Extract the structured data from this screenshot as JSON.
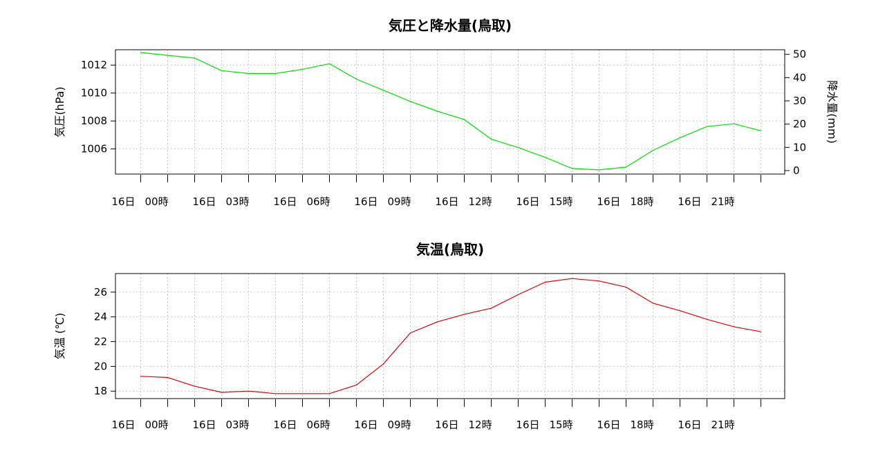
{
  "chart_data": [
    {
      "type": "line",
      "title": "気圧と降水量(鳥取)",
      "ylabel": "気圧(hPa)",
      "ylabel_right": "降水量(mm)",
      "x_tick_labels": [
        "16日 00時",
        "16日 03時",
        "16日 06時",
        "16日 09時",
        "16日 12時",
        "16日 15時",
        "16日 18時",
        "16日 21時"
      ],
      "x_hours": [
        0,
        1,
        2,
        3,
        4,
        5,
        6,
        7,
        8,
        9,
        10,
        11,
        12,
        13,
        14,
        15,
        16,
        17,
        18,
        19,
        20,
        21,
        22,
        23
      ],
      "ylim": [
        1004.2,
        1013.1
      ],
      "y_ticks": [
        1006,
        1008,
        1010,
        1012
      ],
      "y2lim": [
        -1.5,
        52
      ],
      "y2_ticks": [
        0,
        10,
        20,
        30,
        40,
        50
      ],
      "grid": true,
      "series": [
        {
          "color": "#00dd00",
          "axis": "left",
          "values": [
            1012.9,
            1012.7,
            1012.5,
            1011.6,
            1011.4,
            1011.4,
            1011.7,
            1012.1,
            1011.0,
            1010.2,
            1009.4,
            1008.7,
            1008.1,
            1006.7,
            1006.1,
            1005.4,
            1004.6,
            1004.5,
            1004.7,
            1005.9,
            1006.8,
            1007.6,
            1007.8,
            1007.3
          ]
        }
      ]
    },
    {
      "type": "line",
      "title": "気温(鳥取)",
      "ylabel": "気温 (℃)",
      "x_tick_labels": [
        "16日 00時",
        "16日 03時",
        "16日 06時",
        "16日 09時",
        "16日 12時",
        "16日 15時",
        "16日 18時",
        "16日 21時"
      ],
      "x_hours": [
        0,
        1,
        2,
        3,
        4,
        5,
        6,
        7,
        8,
        9,
        10,
        11,
        12,
        13,
        14,
        15,
        16,
        17,
        18,
        19,
        20,
        21,
        22,
        23
      ],
      "ylim": [
        17.4,
        27.5
      ],
      "y_ticks": [
        18,
        20,
        22,
        24,
        26
      ],
      "grid": true,
      "series": [
        {
          "color": "#dd0000",
          "axis": "left",
          "values": [
            19.2,
            19.1,
            18.4,
            17.9,
            18.0,
            17.8,
            17.8,
            17.8,
            18.5,
            20.2,
            22.7,
            23.6,
            24.2,
            24.7,
            25.8,
            26.8,
            27.1,
            26.9,
            26.4,
            25.1,
            24.5,
            23.8,
            23.2,
            22.8
          ]
        }
      ]
    }
  ]
}
